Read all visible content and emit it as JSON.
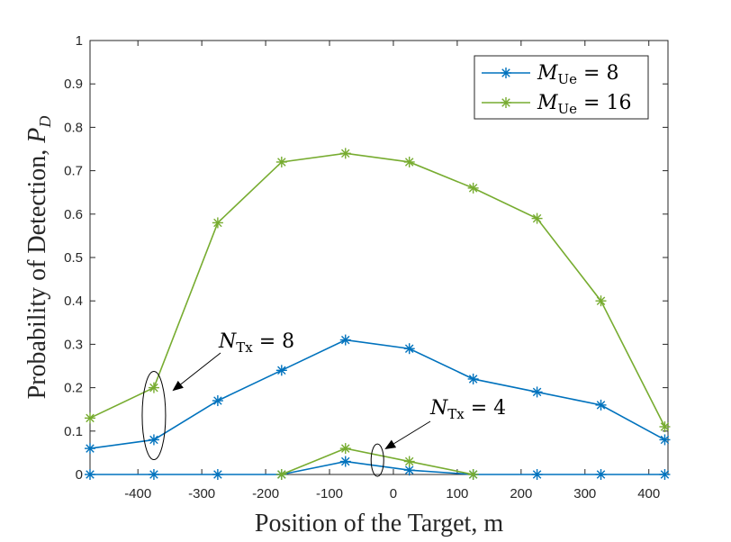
{
  "chart_data": {
    "type": "line",
    "title": "",
    "xlabel": "Position of the Target, m",
    "ylabel": "Probability of Detection, ",
    "ylabel_symbol": "P",
    "ylabel_subscript": "D",
    "xlim": [
      -475,
      430
    ],
    "ylim": [
      0,
      1
    ],
    "xticks": [
      -400,
      -300,
      -200,
      -100,
      0,
      100,
      200,
      300,
      400
    ],
    "yticks": [
      0,
      0.1,
      0.2,
      0.3,
      0.4,
      0.5,
      0.6,
      0.7,
      0.8,
      0.9,
      1
    ],
    "ytick_labels": [
      "0",
      "0.1",
      "0.2",
      "0.3",
      "0.4",
      "0.5",
      "0.6",
      "0.7",
      "0.8",
      "0.9",
      "1"
    ],
    "x": [
      -475,
      -375,
      -275,
      -175,
      -75,
      25,
      125,
      225,
      325,
      425
    ],
    "grid": false,
    "legend_position": "top-right",
    "series": [
      {
        "name": "M_Ue = 8",
        "label_symbol": "M",
        "label_sub": "Ue",
        "label_rest": " = 8",
        "color": "#0072BD",
        "groups": [
          {
            "label": "N_Tx = 8",
            "values": [
              0.06,
              0.08,
              0.17,
              0.24,
              0.31,
              0.29,
              0.22,
              0.19,
              0.16,
              0.08
            ]
          },
          {
            "label": "N_Tx = 4",
            "values": [
              0,
              0,
              0,
              0,
              0.03,
              0.01,
              0,
              0,
              0,
              0
            ]
          }
        ]
      },
      {
        "name": "M_Ue = 16",
        "label_symbol": "M",
        "label_sub": "Ue",
        "label_rest": " = 16",
        "color": "#77AC30",
        "groups": [
          {
            "label": "N_Tx = 8",
            "values": [
              0.13,
              0.2,
              0.58,
              0.72,
              0.74,
              0.72,
              0.66,
              0.59,
              0.4,
              0.11
            ]
          },
          {
            "label": "N_Tx = 4",
            "values": [
              null,
              null,
              null,
              0,
              0.06,
              0.03,
              0,
              null,
              null,
              null
            ]
          }
        ]
      }
    ],
    "annotations": [
      {
        "symbol": "N",
        "sub": "Tx",
        "rest": " = 8"
      },
      {
        "symbol": "N",
        "sub": "Tx",
        "rest": " = 4"
      }
    ]
  }
}
